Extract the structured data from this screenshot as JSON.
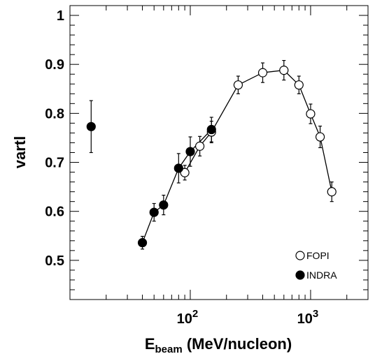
{
  "chart_data": {
    "type": "scatter",
    "xscale": "log",
    "xlim": [
      10,
      3000
    ],
    "ylim": [
      0.42,
      1.02
    ],
    "grid": false,
    "legend_position": "bottom-right",
    "ylabel": "vartl",
    "xlabel_main": "E",
    "xlabel_sub": "beam",
    "xlabel_rest": " (MeV/nucleon)",
    "y_ticks": [
      {
        "value": 0.5,
        "label": "0.5"
      },
      {
        "value": 0.6,
        "label": "0.6"
      },
      {
        "value": 0.7,
        "label": "0.7"
      },
      {
        "value": 0.8,
        "label": "0.8"
      },
      {
        "value": 0.9,
        "label": "0.9"
      },
      {
        "value": 1.0,
        "label": "1"
      }
    ],
    "x_major_ticks": [
      {
        "value": 100,
        "base": "10",
        "exp": "2"
      },
      {
        "value": 1000,
        "base": "10",
        "exp": "3"
      }
    ],
    "series": [
      {
        "name": "FOPI",
        "marker": "open-circle",
        "connected": true,
        "points": [
          {
            "x": 90,
            "y": 0.679,
            "err": 0.015
          },
          {
            "x": 120,
            "y": 0.733,
            "err": 0.02
          },
          {
            "x": 150,
            "y": 0.762,
            "err": 0.022
          },
          {
            "x": 250,
            "y": 0.858,
            "err": 0.018
          },
          {
            "x": 400,
            "y": 0.883,
            "err": 0.02
          },
          {
            "x": 600,
            "y": 0.888,
            "err": 0.02
          },
          {
            "x": 800,
            "y": 0.858,
            "err": 0.018
          },
          {
            "x": 1000,
            "y": 0.799,
            "err": 0.02
          },
          {
            "x": 1200,
            "y": 0.752,
            "err": 0.022
          },
          {
            "x": 1500,
            "y": 0.64,
            "err": 0.02
          }
        ]
      },
      {
        "name": "INDRA",
        "marker": "filled-circle",
        "connected": true,
        "connect_from_index": 1,
        "points": [
          {
            "x": 15,
            "y": 0.773,
            "err": 0.053
          },
          {
            "x": 40,
            "y": 0.536,
            "err": 0.013
          },
          {
            "x": 50,
            "y": 0.598,
            "err": 0.018
          },
          {
            "x": 60,
            "y": 0.613,
            "err": 0.02
          },
          {
            "x": 80,
            "y": 0.688,
            "err": 0.03
          },
          {
            "x": 100,
            "y": 0.722,
            "err": 0.03
          },
          {
            "x": 150,
            "y": 0.767,
            "err": 0.025
          }
        ]
      }
    ]
  }
}
